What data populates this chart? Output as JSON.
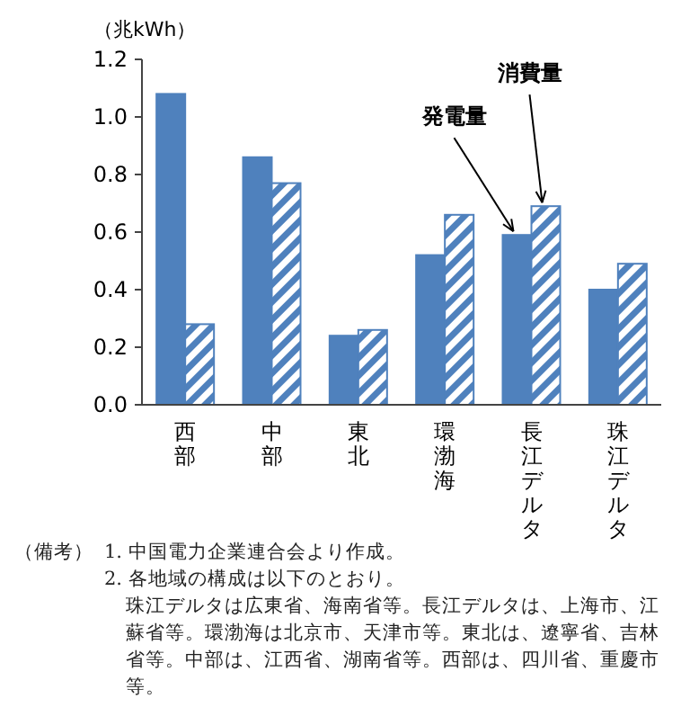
{
  "chart_data": {
    "type": "bar",
    "ylabel": "（兆kWh）",
    "categories": [
      "西部",
      "中部",
      "東北",
      "環渤海",
      "長江デルタ",
      "珠江デルタ"
    ],
    "series": [
      {
        "name": "発電量",
        "color": "#4f81bd",
        "values": [
          1.08,
          0.86,
          0.24,
          0.52,
          0.59,
          0.4
        ]
      },
      {
        "name": "消費量",
        "color": "#4f81bd",
        "values": [
          0.28,
          0.77,
          0.26,
          0.66,
          0.69,
          0.49
        ]
      }
    ],
    "ylim": [
      0,
      1.2
    ],
    "yticks": [
      {
        "value": 0,
        "label": "0.0"
      },
      {
        "value": 0.2,
        "label": "0.2"
      },
      {
        "value": 0.4,
        "label": "0.4"
      },
      {
        "value": 0.6,
        "label": "0.6"
      },
      {
        "value": 0.8,
        "label": "0.8"
      },
      {
        "value": 1,
        "label": "1.0"
      },
      {
        "value": 1.2,
        "label": "1.2"
      }
    ],
    "grid": false,
    "annotations": [
      "（備考）",
      "1. 中国電力企業連合会より作成。",
      "2. 各地域の構成は以下のとおり。",
      "珠江デルタは広東省、海南省等。長江デルタは、上海市、江蘇省等。環渤海は北京市、天津市等。東北は、遼寧省、吉林省等。中部は、江西省、湖南省等。西部は、四川省、重慶市等。"
    ]
  }
}
